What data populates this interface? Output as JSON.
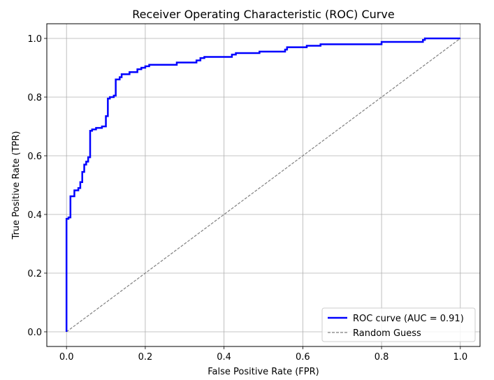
{
  "chart_data": {
    "type": "line",
    "title": "Receiver Operating Characteristic (ROC) Curve",
    "xlabel": "False Positive Rate (FPR)",
    "ylabel": "True Positive Rate (TPR)",
    "xlim": [
      -0.05,
      1.05
    ],
    "ylim": [
      -0.05,
      1.05
    ],
    "xticks": [
      0.0,
      0.2,
      0.4,
      0.6,
      0.8,
      1.0
    ],
    "yticks": [
      0.0,
      0.2,
      0.4,
      0.6,
      0.8,
      1.0
    ],
    "xtick_labels": [
      "0.0",
      "0.2",
      "0.4",
      "0.6",
      "0.8",
      "1.0"
    ],
    "ytick_labels": [
      "0.0",
      "0.2",
      "0.4",
      "0.6",
      "0.8",
      "1.0"
    ],
    "grid": true,
    "legend_position": "lower-right",
    "series": [
      {
        "name": "ROC curve (AUC = 0.91)",
        "color": "#0000ff",
        "style": "solid",
        "x": [
          0.0,
          0.0,
          0.005,
          0.005,
          0.01,
          0.01,
          0.02,
          0.02,
          0.03,
          0.03,
          0.035,
          0.035,
          0.04,
          0.04,
          0.045,
          0.045,
          0.05,
          0.05,
          0.055,
          0.055,
          0.06,
          0.06,
          0.065,
          0.065,
          0.075,
          0.075,
          0.09,
          0.09,
          0.1,
          0.1,
          0.105,
          0.105,
          0.11,
          0.11,
          0.12,
          0.12,
          0.125,
          0.125,
          0.135,
          0.135,
          0.14,
          0.14,
          0.16,
          0.16,
          0.18,
          0.18,
          0.19,
          0.19,
          0.2,
          0.2,
          0.21,
          0.21,
          0.28,
          0.28,
          0.33,
          0.33,
          0.34,
          0.34,
          0.35,
          0.35,
          0.42,
          0.42,
          0.43,
          0.43,
          0.49,
          0.49,
          0.555,
          0.555,
          0.56,
          0.56,
          0.61,
          0.61,
          0.645,
          0.645,
          0.8,
          0.8,
          0.905,
          0.905,
          0.91,
          0.91,
          1.0
        ],
        "y": [
          0.0,
          0.385,
          0.385,
          0.39,
          0.39,
          0.462,
          0.462,
          0.482,
          0.482,
          0.49,
          0.49,
          0.51,
          0.51,
          0.545,
          0.545,
          0.57,
          0.57,
          0.58,
          0.58,
          0.595,
          0.595,
          0.685,
          0.685,
          0.69,
          0.69,
          0.695,
          0.695,
          0.7,
          0.7,
          0.735,
          0.735,
          0.795,
          0.795,
          0.8,
          0.8,
          0.805,
          0.805,
          0.86,
          0.86,
          0.868,
          0.868,
          0.878,
          0.878,
          0.885,
          0.885,
          0.895,
          0.895,
          0.9,
          0.9,
          0.905,
          0.905,
          0.91,
          0.91,
          0.918,
          0.918,
          0.925,
          0.925,
          0.933,
          0.933,
          0.937,
          0.937,
          0.945,
          0.945,
          0.95,
          0.95,
          0.955,
          0.955,
          0.962,
          0.962,
          0.97,
          0.97,
          0.975,
          0.975,
          0.98,
          0.98,
          0.988,
          0.988,
          0.995,
          0.995,
          1.0,
          1.0
        ]
      },
      {
        "name": "Random Guess",
        "color": "#808080",
        "style": "dashed",
        "x": [
          0.0,
          1.0
        ],
        "y": [
          0.0,
          1.0
        ]
      }
    ]
  }
}
